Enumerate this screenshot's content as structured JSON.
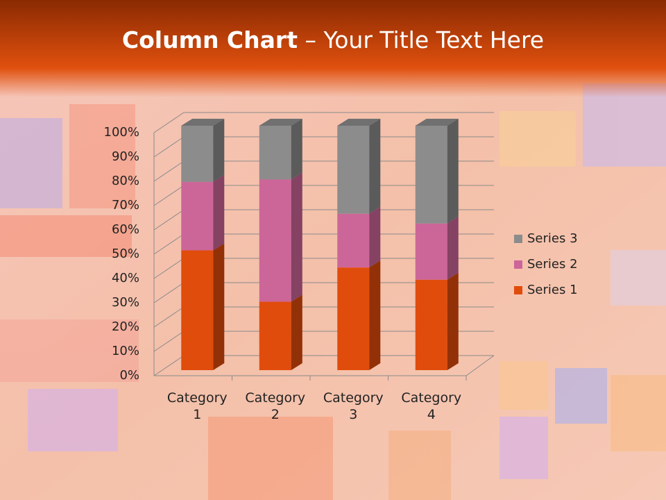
{
  "slide_title": {
    "bold": "Column Chart",
    "regular": "– Your Title Text Here"
  },
  "chart_data": {
    "type": "bar",
    "stacked": true,
    "categories": [
      "Category 1",
      "Category 2",
      "Category 3",
      "Category 4"
    ],
    "series": [
      {
        "name": "Series 1",
        "color": "#e04c0c",
        "values": [
          49,
          28,
          42,
          37
        ]
      },
      {
        "name": "Series 2",
        "color": "#cc6699",
        "values": [
          28,
          50,
          22,
          23
        ]
      },
      {
        "name": "Series 3",
        "color": "#8c8c8c",
        "values": [
          23,
          22,
          36,
          40
        ]
      }
    ],
    "ylim": [
      0,
      100
    ],
    "yticks": [
      {
        "value": 0,
        "label": "0%"
      },
      {
        "value": 10,
        "label": "10%"
      },
      {
        "value": 20,
        "label": "20%"
      },
      {
        "value": 30,
        "label": "30%"
      },
      {
        "value": 40,
        "label": "40%"
      },
      {
        "value": 50,
        "label": "50%"
      },
      {
        "value": 60,
        "label": "60%"
      },
      {
        "value": 70,
        "label": "70%"
      },
      {
        "value": 80,
        "label": "80%"
      },
      {
        "value": 90,
        "label": "90%"
      },
      {
        "value": 100,
        "label": "100%"
      }
    ],
    "grid": true,
    "legend": "right"
  }
}
